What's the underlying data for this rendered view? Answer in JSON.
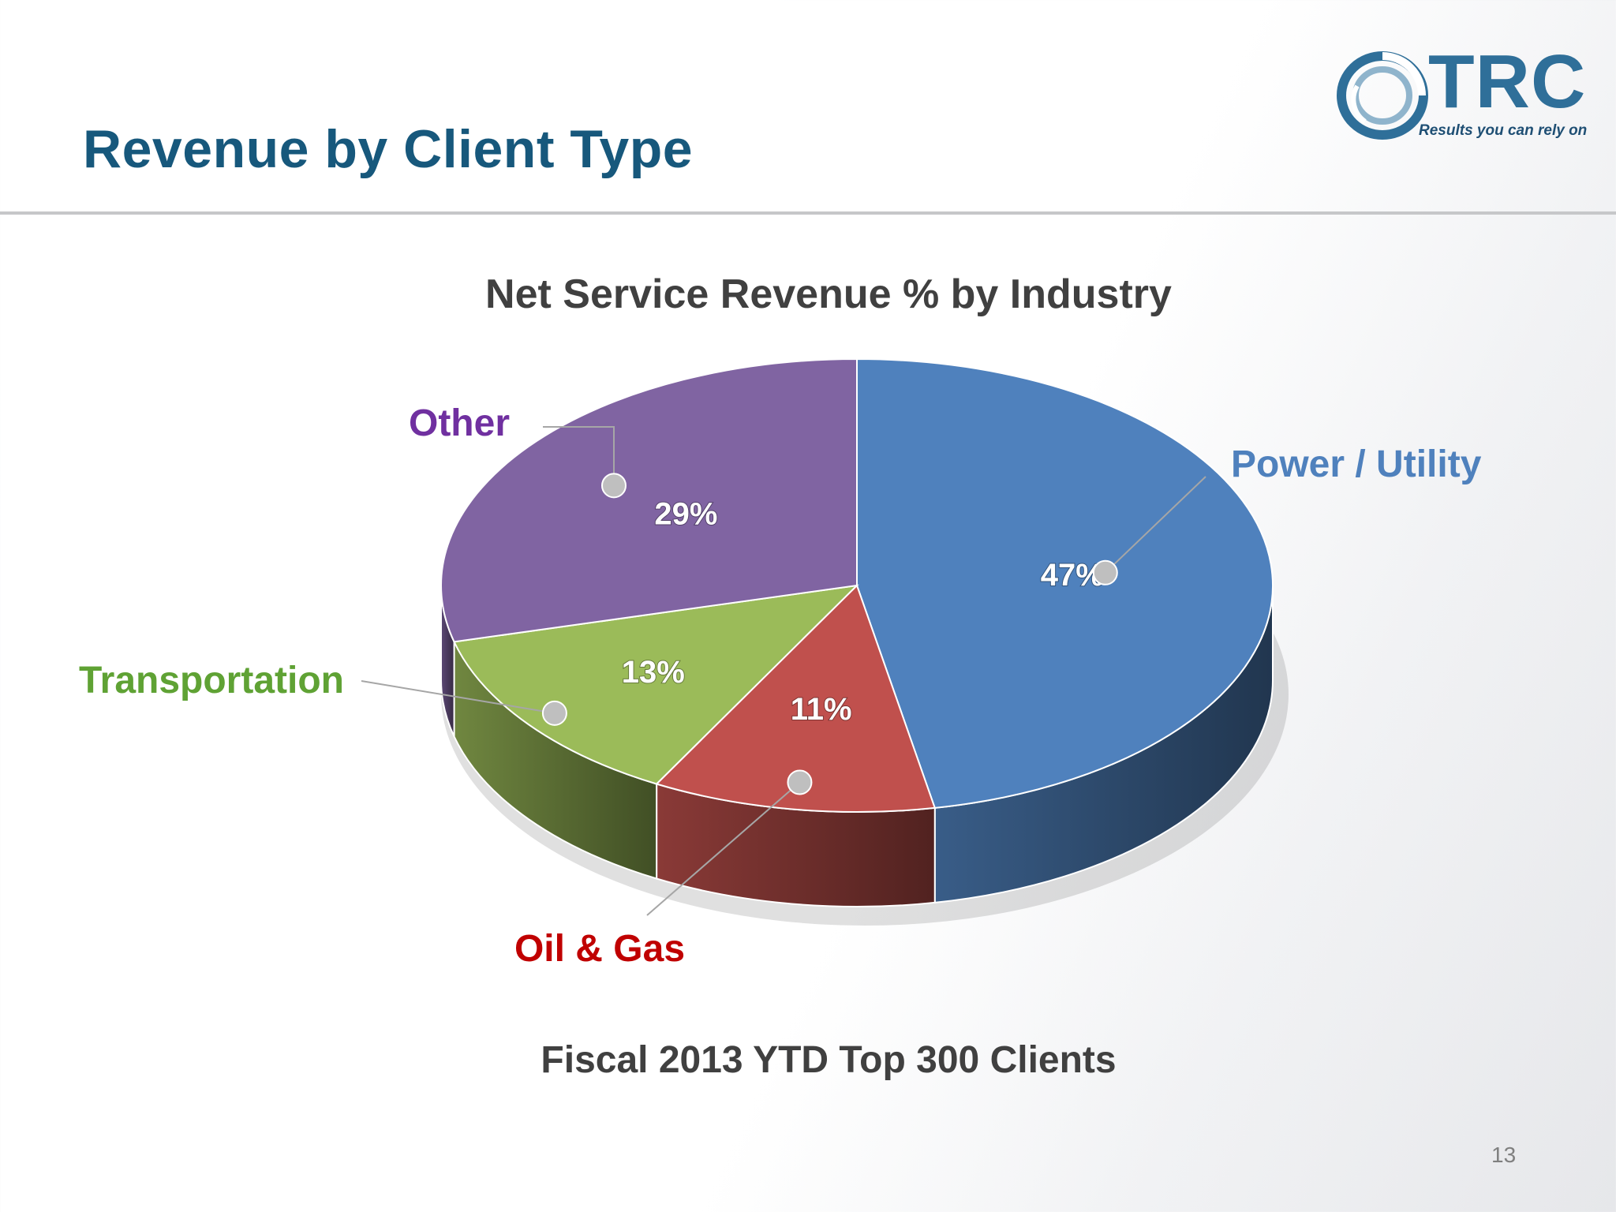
{
  "slide": {
    "title": "Revenue by Client Type",
    "page_number": "13",
    "logo": {
      "wordmark": "TRC",
      "tagline": "Results you can rely on"
    }
  },
  "colors": {
    "title": "#17587c",
    "power_utility": "#4f81bd",
    "oil_gas": "#c0504d",
    "transportation": "#9bbb59",
    "other": "#8064a2"
  },
  "chart_data": {
    "type": "pie",
    "title": "Net Service Revenue % by Industry",
    "subtitle": "Fiscal 2013 YTD Top 300 Clients",
    "three_d": true,
    "categories": [
      "Power / Utility",
      "Oil & Gas",
      "Transportation",
      "Other"
    ],
    "values": [
      47,
      11,
      13,
      29
    ],
    "value_labels": [
      "47%",
      "11%",
      "13%",
      "29%"
    ],
    "label_colors": [
      "#4f81bd",
      "#c00000",
      "#5fa234",
      "#7030a0"
    ],
    "slice_colors": [
      "#4f81bd",
      "#c0504d",
      "#9bbb59",
      "#8064a2"
    ],
    "start_angle_deg": 0,
    "direction": "clockwise"
  }
}
